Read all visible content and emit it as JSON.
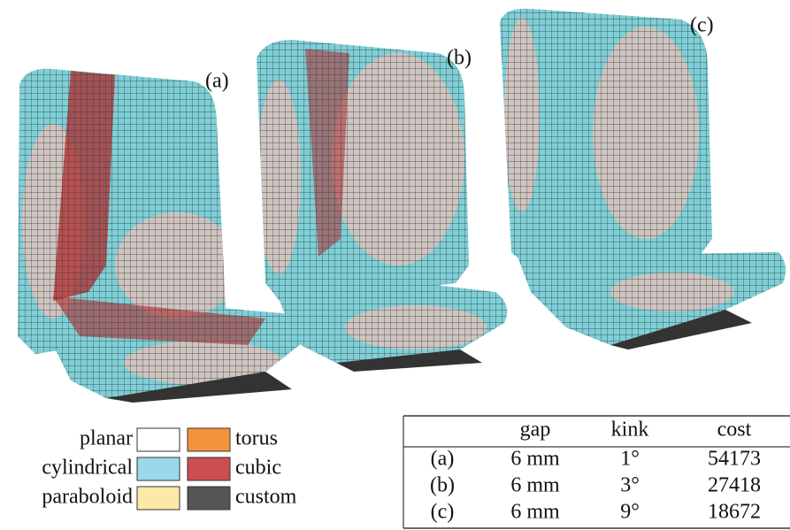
{
  "figure": {
    "labels": [
      "(a)",
      "(b)",
      "(c)"
    ]
  },
  "legend": [
    {
      "label": "planar",
      "color": "#ffffff"
    },
    {
      "label": "cylindrical",
      "color": "#9ad8ec"
    },
    {
      "label": "paraboloid",
      "color": "#fde9a6"
    },
    {
      "label": "torus",
      "color": "#f3943a"
    },
    {
      "label": "cubic",
      "color": "#cc4e52"
    },
    {
      "label": "custom",
      "color": "#555555"
    }
  ],
  "table": {
    "header": [
      "gap",
      "kink",
      "cost"
    ],
    "rows": [
      [
        "(a)",
        "6 mm",
        "1°",
        54173
      ],
      [
        "(b)",
        "6 mm",
        "3°",
        27418
      ],
      [
        "(c)",
        "6 mm",
        "9°",
        18672
      ]
    ]
  }
}
